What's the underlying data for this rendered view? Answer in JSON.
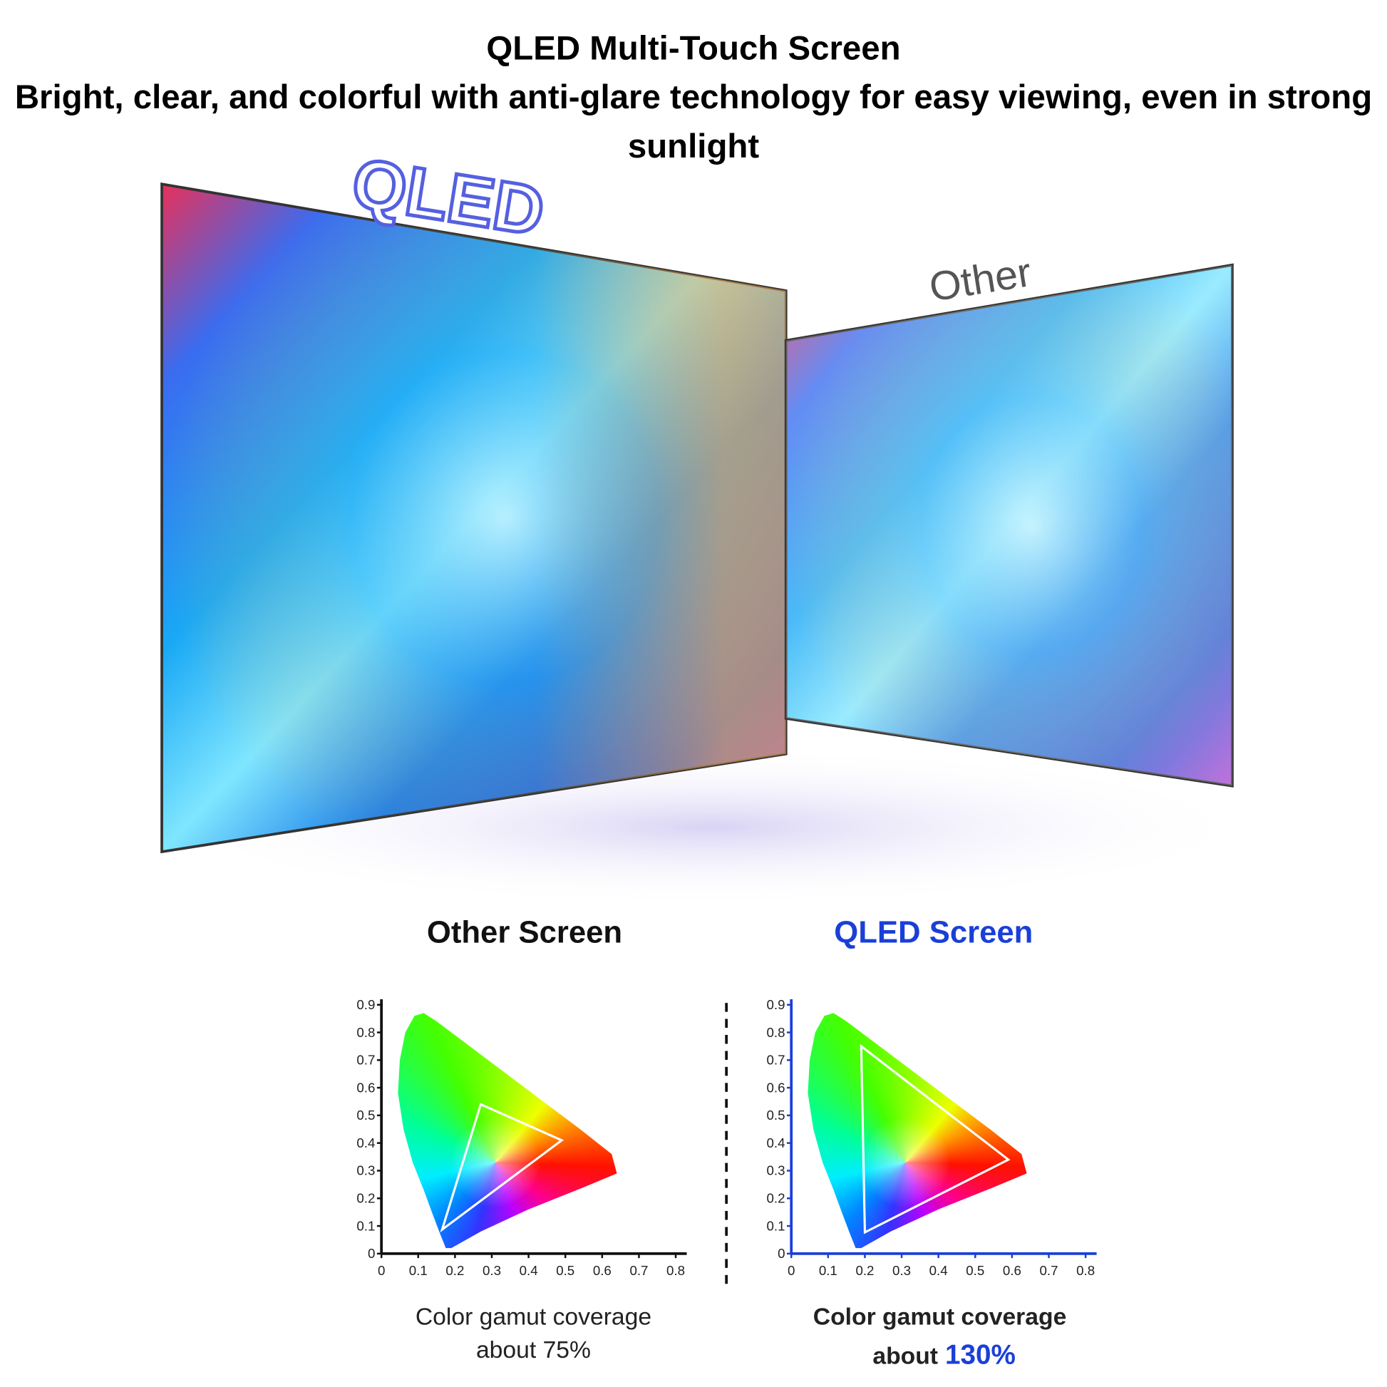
{
  "header": {
    "title": "QLED Multi-Touch Screen",
    "subtitle": "Bright, clear, and colorful with anti-glare technology for easy viewing, even in strong sunlight"
  },
  "screens": {
    "qled_label": "QLED",
    "other_label": "Other"
  },
  "charts": [
    {
      "heading": "Other Screen",
      "heading_color": "#111111",
      "axis_color": "#111111",
      "xlim": [
        0,
        0.83
      ],
      "ylim": [
        0,
        0.92
      ],
      "xticks": [
        0,
        0.1,
        0.2,
        0.3,
        0.4,
        0.5,
        0.6,
        0.7,
        0.8
      ],
      "yticks": [
        0,
        0.1,
        0.2,
        0.3,
        0.4,
        0.5,
        0.6,
        0.7,
        0.8,
        0.9
      ],
      "triangle": [
        [
          0.27,
          0.54
        ],
        [
          0.49,
          0.41
        ],
        [
          0.165,
          0.087
        ]
      ],
      "caption": [
        "Color gamut coverage",
        "about 75%"
      ]
    },
    {
      "heading": "QLED Screen",
      "heading_color": "#1a3fd8",
      "axis_color": "#1a3fd8",
      "xlim": [
        0,
        0.83
      ],
      "ylim": [
        0,
        0.92
      ],
      "xticks": [
        0,
        0.1,
        0.2,
        0.3,
        0.4,
        0.5,
        0.6,
        0.7,
        0.8
      ],
      "yticks": [
        0,
        0.1,
        0.2,
        0.3,
        0.4,
        0.5,
        0.6,
        0.7,
        0.8,
        0.9
      ],
      "triangle": [
        [
          0.19,
          0.75
        ],
        [
          0.59,
          0.34
        ],
        [
          0.2,
          0.077
        ]
      ],
      "caption": [
        "Color gamut coverage",
        "about",
        "130%"
      ]
    }
  ]
}
